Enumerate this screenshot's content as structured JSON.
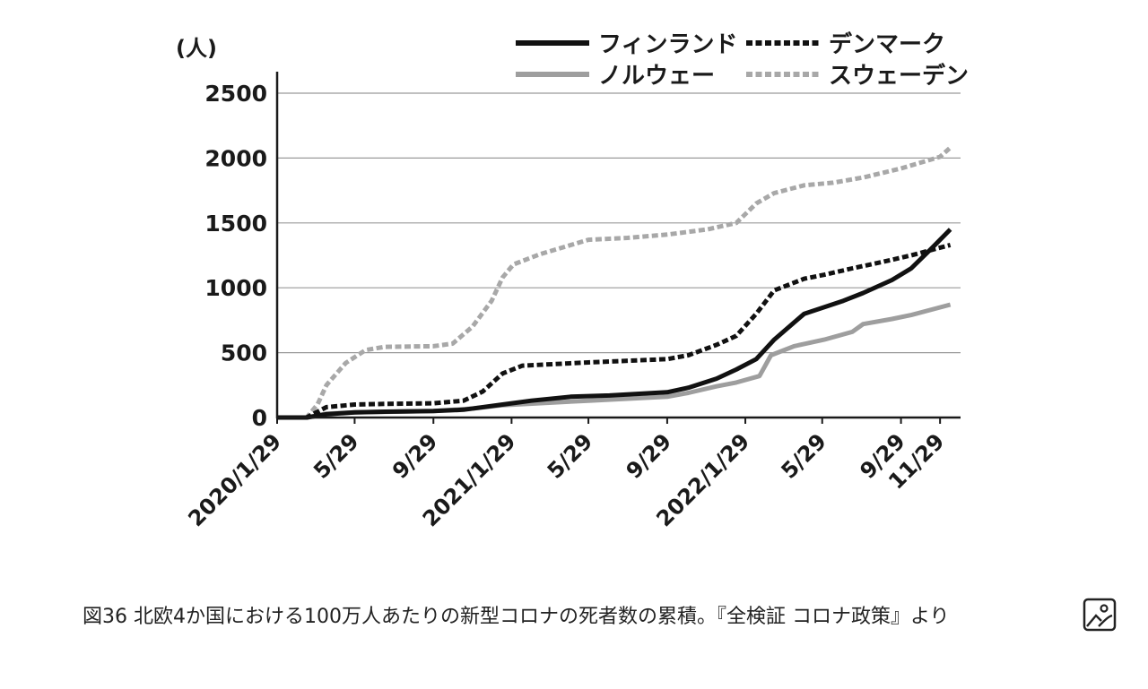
{
  "chart_data": {
    "type": "line",
    "unit_label": "(人)",
    "ylim": [
      0,
      2600
    ],
    "yticks": [
      0,
      500,
      1000,
      1500,
      2000,
      2500
    ],
    "xlim": [
      "2020-01-29",
      "2022-12-31"
    ],
    "grid": "horizontal",
    "legend_position": "top-right",
    "xticks": [
      {
        "date": "2020-01-29",
        "label": "2020/1/29"
      },
      {
        "date": "2020-05-29",
        "label": "5/29"
      },
      {
        "date": "2020-09-29",
        "label": "9/29"
      },
      {
        "date": "2021-01-29",
        "label": "2021/1/29"
      },
      {
        "date": "2021-05-29",
        "label": "5/29"
      },
      {
        "date": "2021-09-29",
        "label": "9/29"
      },
      {
        "date": "2022-01-29",
        "label": "2022/1/29"
      },
      {
        "date": "2022-05-29",
        "label": "5/29"
      },
      {
        "date": "2022-09-29",
        "label": "9/29"
      },
      {
        "date": "2022-11-29",
        "label": "11/29"
      }
    ],
    "series": [
      {
        "name": "フィンランド",
        "color": "#111111",
        "dash": "solid",
        "points": [
          [
            "2020-01-29",
            0
          ],
          [
            "2020-03-15",
            0
          ],
          [
            "2020-04-15",
            25
          ],
          [
            "2020-05-29",
            40
          ],
          [
            "2020-07-15",
            45
          ],
          [
            "2020-09-29",
            50
          ],
          [
            "2020-11-15",
            60
          ],
          [
            "2021-01-15",
            100
          ],
          [
            "2021-03-01",
            130
          ],
          [
            "2021-05-01",
            160
          ],
          [
            "2021-07-01",
            170
          ],
          [
            "2021-09-29",
            195
          ],
          [
            "2021-11-01",
            230
          ],
          [
            "2021-12-15",
            300
          ],
          [
            "2022-01-15",
            370
          ],
          [
            "2022-02-15",
            450
          ],
          [
            "2022-03-15",
            600
          ],
          [
            "2022-05-01",
            800
          ],
          [
            "2022-06-01",
            850
          ],
          [
            "2022-07-01",
            900
          ],
          [
            "2022-08-01",
            960
          ],
          [
            "2022-09-15",
            1060
          ],
          [
            "2022-10-15",
            1150
          ],
          [
            "2022-11-15",
            1300
          ],
          [
            "2022-12-15",
            1450
          ]
        ]
      },
      {
        "name": "デンマーク",
        "color": "#111111",
        "dash": "dashed",
        "points": [
          [
            "2020-01-29",
            0
          ],
          [
            "2020-03-15",
            0
          ],
          [
            "2020-04-15",
            80
          ],
          [
            "2020-05-29",
            100
          ],
          [
            "2020-07-15",
            105
          ],
          [
            "2020-09-29",
            110
          ],
          [
            "2020-11-15",
            130
          ],
          [
            "2020-12-15",
            200
          ],
          [
            "2021-01-15",
            340
          ],
          [
            "2021-02-15",
            400
          ],
          [
            "2021-05-29",
            425
          ],
          [
            "2021-09-29",
            450
          ],
          [
            "2021-11-01",
            480
          ],
          [
            "2021-12-15",
            560
          ],
          [
            "2022-01-15",
            630
          ],
          [
            "2022-02-15",
            800
          ],
          [
            "2022-03-15",
            980
          ],
          [
            "2022-05-01",
            1070
          ],
          [
            "2022-06-01",
            1100
          ],
          [
            "2022-07-15",
            1150
          ],
          [
            "2022-09-01",
            1200
          ],
          [
            "2022-10-15",
            1250
          ],
          [
            "2022-12-15",
            1330
          ]
        ]
      },
      {
        "name": "ノルウェー",
        "color": "#9e9e9e",
        "dash": "solid",
        "points": [
          [
            "2020-01-29",
            0
          ],
          [
            "2020-03-15",
            0
          ],
          [
            "2020-04-15",
            30
          ],
          [
            "2020-05-29",
            40
          ],
          [
            "2020-09-29",
            50
          ],
          [
            "2020-12-01",
            70
          ],
          [
            "2021-01-15",
            95
          ],
          [
            "2021-05-29",
            130
          ],
          [
            "2021-09-29",
            160
          ],
          [
            "2021-11-01",
            190
          ],
          [
            "2021-12-15",
            240
          ],
          [
            "2022-01-15",
            270
          ],
          [
            "2022-02-20",
            320
          ],
          [
            "2022-03-10",
            480
          ],
          [
            "2022-04-15",
            550
          ],
          [
            "2022-06-01",
            600
          ],
          [
            "2022-07-15",
            660
          ],
          [
            "2022-08-01",
            720
          ],
          [
            "2022-09-15",
            760
          ],
          [
            "2022-10-15",
            790
          ],
          [
            "2022-12-15",
            870
          ]
        ]
      },
      {
        "name": "スウェーデン",
        "color": "#a8a8a8",
        "dash": "dashed",
        "points": [
          [
            "2020-01-29",
            0
          ],
          [
            "2020-03-15",
            0
          ],
          [
            "2020-04-01",
            100
          ],
          [
            "2020-04-15",
            250
          ],
          [
            "2020-05-15",
            420
          ],
          [
            "2020-06-15",
            520
          ],
          [
            "2020-07-15",
            545
          ],
          [
            "2020-09-29",
            550
          ],
          [
            "2020-10-29",
            570
          ],
          [
            "2020-11-29",
            700
          ],
          [
            "2020-12-29",
            900
          ],
          [
            "2021-01-15",
            1080
          ],
          [
            "2021-02-01",
            1180
          ],
          [
            "2021-03-15",
            1260
          ],
          [
            "2021-05-29",
            1370
          ],
          [
            "2021-07-29",
            1385
          ],
          [
            "2021-09-29",
            1410
          ],
          [
            "2021-12-01",
            1450
          ],
          [
            "2022-01-15",
            1500
          ],
          [
            "2022-02-15",
            1650
          ],
          [
            "2022-03-15",
            1730
          ],
          [
            "2022-05-01",
            1790
          ],
          [
            "2022-06-15",
            1810
          ],
          [
            "2022-08-01",
            1850
          ],
          [
            "2022-09-29",
            1920
          ],
          [
            "2022-11-29",
            2010
          ],
          [
            "2022-12-15",
            2080
          ]
        ]
      }
    ]
  },
  "figure": {
    "caption": "図36 北欧4か国における100万人あたりの新型コロナの死者数の累積。『全検証 コロナ政策』より",
    "icon": "image-icon"
  }
}
